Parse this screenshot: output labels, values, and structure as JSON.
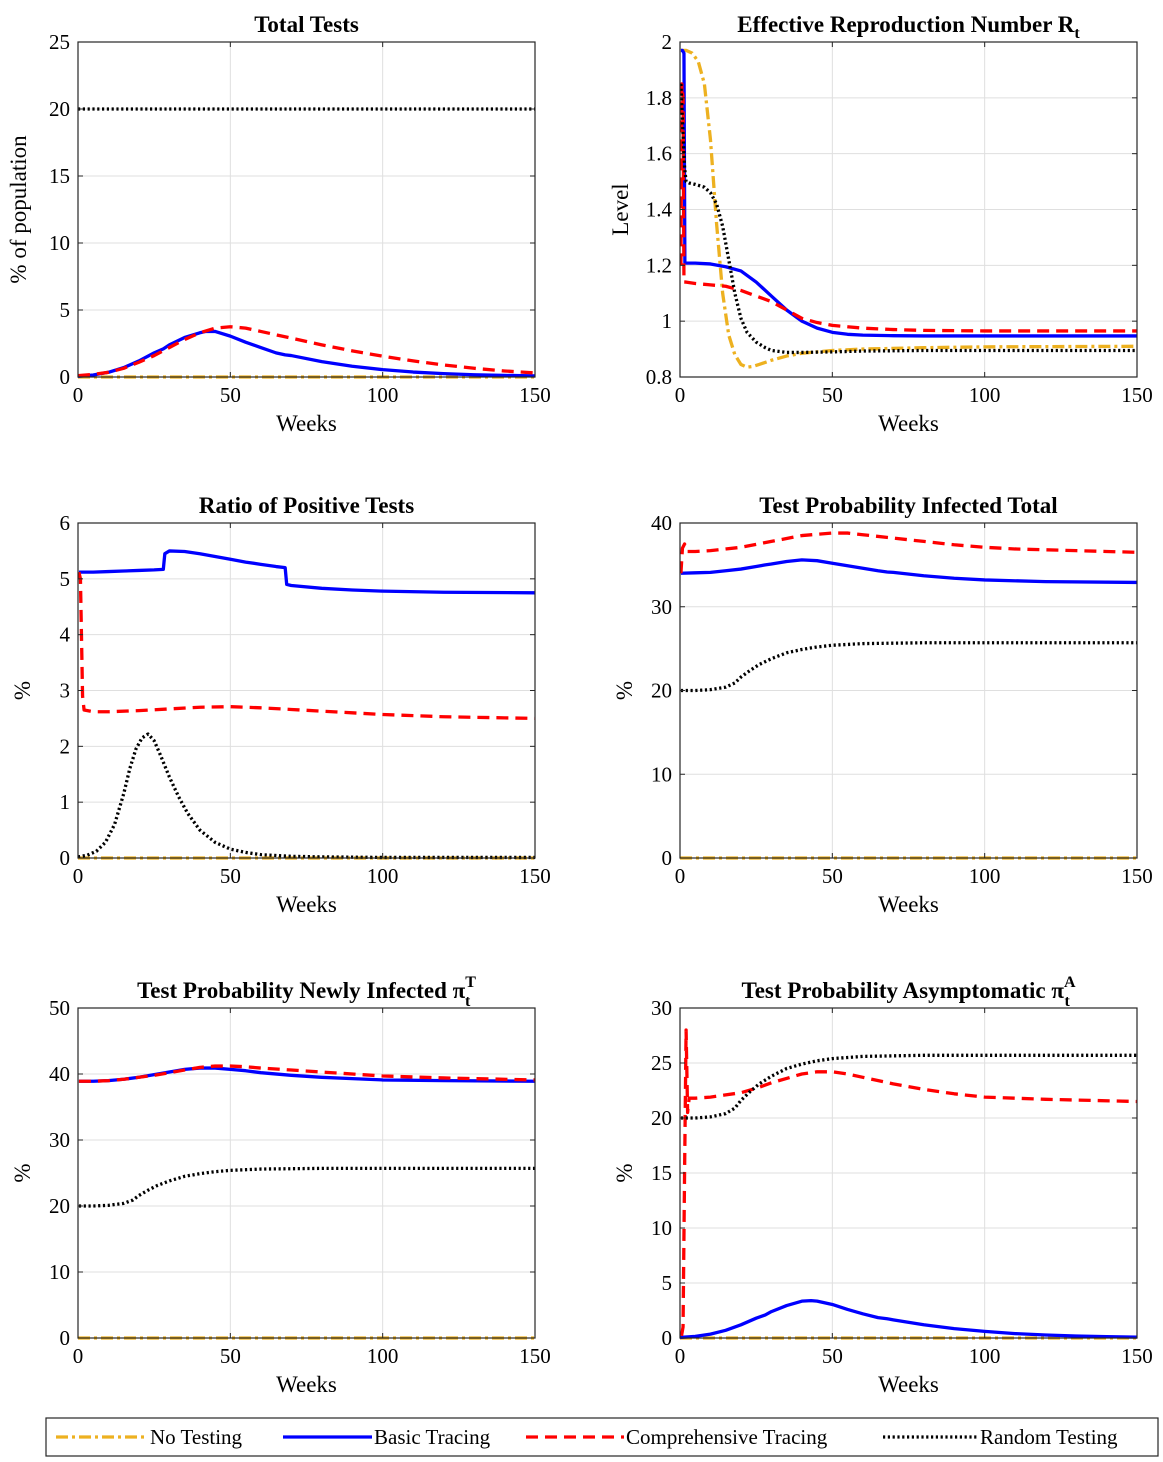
{
  "legend": [
    {
      "key": "no",
      "label": "No Testing"
    },
    {
      "key": "basic",
      "label": "Basic Tracing"
    },
    {
      "key": "comp",
      "label": "Comprehensive Tracing"
    },
    {
      "key": "random",
      "label": "Random Testing"
    }
  ],
  "styles": {
    "no": {
      "color": "#EDB120",
      "dash": "12 4 3 4"
    },
    "basic": {
      "color": "#0000FF",
      "dash": ""
    },
    "comp": {
      "color": "#FF0000",
      "dash": "12 7"
    },
    "random": {
      "color": "#000000",
      "dash": "2.2 2.6"
    }
  },
  "chart_data": [
    {
      "type": "line",
      "title": "Total Tests",
      "xlabel": "Weeks",
      "ylabel": "% of population",
      "xlim": [
        0,
        150
      ],
      "ylim": [
        0,
        25
      ],
      "xticks": [
        0,
        50,
        100,
        150
      ],
      "yticks": [
        0,
        5,
        10,
        15,
        20,
        25
      ],
      "grid": true,
      "series": [
        {
          "key": "no",
          "x": [
            0,
            150
          ],
          "y": [
            0,
            0
          ]
        },
        {
          "key": "basic",
          "x": [
            0,
            5,
            10,
            15,
            20,
            25,
            28,
            30,
            35,
            40,
            42,
            45,
            50,
            55,
            60,
            65,
            68,
            70,
            80,
            90,
            100,
            110,
            120,
            130,
            140,
            150
          ],
          "y": [
            0.05,
            0.15,
            0.35,
            0.7,
            1.2,
            1.8,
            2.1,
            2.4,
            2.95,
            3.3,
            3.4,
            3.4,
            3.05,
            2.6,
            2.2,
            1.8,
            1.65,
            1.6,
            1.15,
            0.8,
            0.55,
            0.37,
            0.25,
            0.17,
            0.12,
            0.08
          ]
        },
        {
          "key": "comp",
          "x": [
            0,
            5,
            10,
            15,
            20,
            25,
            30,
            35,
            40,
            45,
            50,
            55,
            60,
            70,
            80,
            90,
            100,
            110,
            120,
            130,
            140,
            150
          ],
          "y": [
            0.1,
            0.2,
            0.35,
            0.65,
            1.1,
            1.6,
            2.2,
            2.8,
            3.3,
            3.65,
            3.75,
            3.65,
            3.4,
            2.9,
            2.4,
            1.95,
            1.55,
            1.2,
            0.9,
            0.65,
            0.45,
            0.3
          ]
        },
        {
          "key": "random",
          "x": [
            0,
            150
          ],
          "y": [
            20,
            20
          ]
        }
      ]
    },
    {
      "type": "line",
      "title": "Effective Reproduction Number R",
      "title_sub": "t",
      "xlabel": "Weeks",
      "ylabel": "Level",
      "xlim": [
        0,
        150
      ],
      "ylim": [
        0.8,
        2
      ],
      "xticks": [
        0,
        50,
        100,
        150
      ],
      "yticks": [
        0.8,
        1,
        1.2,
        1.4,
        1.6,
        1.8,
        2
      ],
      "ytick_labels": [
        "0.8",
        "1",
        "1.2",
        "1.4",
        "1.6",
        "1.8",
        "2"
      ],
      "grid": true,
      "series": [
        {
          "key": "no",
          "x": [
            0.3,
            2,
            4,
            6,
            8,
            10,
            12,
            14,
            16,
            18,
            20,
            22,
            24,
            26,
            30,
            35,
            40,
            50,
            60,
            80,
            100,
            150
          ],
          "y": [
            1.97,
            1.97,
            1.96,
            1.93,
            1.85,
            1.65,
            1.35,
            1.1,
            0.95,
            0.88,
            0.845,
            0.835,
            0.838,
            0.845,
            0.86,
            0.875,
            0.885,
            0.895,
            0.9,
            0.905,
            0.908,
            0.91
          ]
        },
        {
          "key": "basic",
          "x": [
            0.3,
            0.8,
            1.3,
            1.6,
            2,
            5,
            10,
            15,
            20,
            25,
            30,
            35,
            40,
            45,
            50,
            55,
            60,
            70,
            80,
            100,
            150
          ],
          "y": [
            1.97,
            1.97,
            1.96,
            1.21,
            1.208,
            1.208,
            1.205,
            1.195,
            1.18,
            1.14,
            1.09,
            1.04,
            1.0,
            0.975,
            0.96,
            0.953,
            0.95,
            0.948,
            0.947,
            0.947,
            0.947
          ]
        },
        {
          "key": "comp",
          "x": [
            0.3,
            0.6,
            1.0,
            1.3,
            2,
            5,
            10,
            15,
            20,
            25,
            30,
            35,
            40,
            45,
            50,
            60,
            70,
            80,
            100,
            150
          ],
          "y": [
            1.2,
            1.85,
            1.8,
            1.14,
            1.14,
            1.135,
            1.13,
            1.125,
            1.11,
            1.09,
            1.07,
            1.04,
            1.01,
            0.995,
            0.985,
            0.975,
            0.97,
            0.967,
            0.965,
            0.965
          ]
        },
        {
          "key": "random",
          "x": [
            0.3,
            0.8,
            1.5,
            2,
            3,
            5,
            8,
            10,
            12,
            14,
            16,
            18,
            20,
            22,
            25,
            28,
            30,
            35,
            40,
            50,
            60,
            80,
            150
          ],
          "y": [
            1.85,
            1.72,
            1.55,
            1.5,
            1.495,
            1.49,
            1.48,
            1.46,
            1.42,
            1.34,
            1.22,
            1.1,
            1.01,
            0.96,
            0.925,
            0.905,
            0.895,
            0.888,
            0.888,
            0.89,
            0.893,
            0.895,
            0.895
          ]
        }
      ]
    },
    {
      "type": "line",
      "title": "Ratio of Positive Tests",
      "xlabel": "Weeks",
      "ylabel": "%",
      "xlim": [
        0,
        150
      ],
      "ylim": [
        0,
        6
      ],
      "xticks": [
        0,
        50,
        100,
        150
      ],
      "yticks": [
        0,
        1,
        2,
        3,
        4,
        5,
        6
      ],
      "grid": true,
      "series": [
        {
          "key": "no",
          "x": [
            0,
            150
          ],
          "y": [
            0,
            0
          ]
        },
        {
          "key": "basic",
          "x": [
            0.3,
            5,
            10,
            15,
            20,
            25,
            28,
            28.5,
            30,
            35,
            40,
            45,
            50,
            55,
            60,
            65,
            68,
            68.5,
            70,
            80,
            90,
            100,
            120,
            150
          ],
          "y": [
            5.12,
            5.12,
            5.13,
            5.14,
            5.15,
            5.16,
            5.17,
            5.45,
            5.5,
            5.49,
            5.45,
            5.4,
            5.35,
            5.3,
            5.26,
            5.22,
            5.2,
            4.9,
            4.88,
            4.83,
            4.8,
            4.78,
            4.76,
            4.75
          ]
        },
        {
          "key": "comp",
          "x": [
            0.3,
            0.8,
            1.5,
            2,
            5,
            10,
            20,
            30,
            40,
            50,
            60,
            70,
            80,
            90,
            100,
            110,
            120,
            130,
            140,
            150
          ],
          "y": [
            5.12,
            5.0,
            2.9,
            2.65,
            2.62,
            2.62,
            2.64,
            2.67,
            2.7,
            2.71,
            2.69,
            2.66,
            2.63,
            2.6,
            2.57,
            2.55,
            2.53,
            2.52,
            2.51,
            2.5
          ]
        },
        {
          "key": "random",
          "x": [
            0,
            3,
            6,
            9,
            12,
            15,
            17,
            19,
            21,
            23,
            25,
            27,
            30,
            33,
            36,
            40,
            45,
            50,
            55,
            60,
            70,
            80,
            100,
            150
          ],
          "y": [
            0.02,
            0.05,
            0.12,
            0.28,
            0.6,
            1.15,
            1.6,
            1.95,
            2.15,
            2.22,
            2.1,
            1.85,
            1.45,
            1.1,
            0.8,
            0.5,
            0.28,
            0.16,
            0.1,
            0.06,
            0.03,
            0.02,
            0.01,
            0.01
          ]
        }
      ]
    },
    {
      "type": "line",
      "title": "Test Probability Infected Total",
      "xlabel": "Weeks",
      "ylabel": "%",
      "xlim": [
        0,
        150
      ],
      "ylim": [
        0,
        40
      ],
      "xticks": [
        0,
        50,
        100,
        150
      ],
      "yticks": [
        0,
        10,
        20,
        30,
        40
      ],
      "grid": true,
      "series": [
        {
          "key": "no",
          "x": [
            0,
            150
          ],
          "y": [
            0,
            0
          ]
        },
        {
          "key": "basic",
          "x": [
            0.3,
            5,
            10,
            15,
            20,
            25,
            28,
            30,
            35,
            40,
            45,
            50,
            55,
            60,
            65,
            68,
            70,
            80,
            90,
            100,
            120,
            150
          ],
          "y": [
            34.0,
            34.05,
            34.1,
            34.3,
            34.5,
            34.8,
            35.0,
            35.1,
            35.4,
            35.6,
            35.5,
            35.2,
            34.9,
            34.6,
            34.3,
            34.15,
            34.1,
            33.7,
            33.4,
            33.2,
            33.0,
            32.9
          ]
        },
        {
          "key": "comp",
          "x": [
            0.3,
            0.8,
            1.5,
            2.5,
            5,
            10,
            20,
            30,
            40,
            50,
            55,
            60,
            70,
            80,
            90,
            100,
            110,
            120,
            130,
            140,
            150
          ],
          "y": [
            34.0,
            37.0,
            37.5,
            36.6,
            36.6,
            36.7,
            37.1,
            37.8,
            38.5,
            38.8,
            38.8,
            38.6,
            38.2,
            37.8,
            37.4,
            37.1,
            36.9,
            36.8,
            36.7,
            36.6,
            36.5
          ]
        },
        {
          "key": "random",
          "x": [
            0.3,
            5,
            10,
            15,
            18,
            20,
            23,
            26,
            30,
            35,
            40,
            45,
            50,
            55,
            60,
            70,
            80,
            100,
            150
          ],
          "y": [
            20.0,
            20.0,
            20.1,
            20.4,
            20.9,
            21.6,
            22.4,
            23.1,
            23.8,
            24.5,
            24.9,
            25.2,
            25.4,
            25.5,
            25.6,
            25.65,
            25.7,
            25.7,
            25.7
          ]
        }
      ]
    },
    {
      "type": "line",
      "title": "Test Probability Newly Infected π",
      "title_sub": "t",
      "title_sup": "T",
      "xlabel": "Weeks",
      "ylabel": "%",
      "xlim": [
        0,
        150
      ],
      "ylim": [
        0,
        50
      ],
      "xticks": [
        0,
        50,
        100,
        150
      ],
      "yticks": [
        0,
        10,
        20,
        30,
        40,
        50
      ],
      "grid": true,
      "series": [
        {
          "key": "no",
          "x": [
            0,
            150
          ],
          "y": [
            0,
            0
          ]
        },
        {
          "key": "basic",
          "x": [
            0.3,
            5,
            10,
            15,
            20,
            25,
            30,
            35,
            40,
            45,
            50,
            55,
            60,
            70,
            80,
            90,
            100,
            120,
            150
          ],
          "y": [
            38.9,
            38.9,
            39.0,
            39.2,
            39.5,
            39.9,
            40.3,
            40.7,
            40.9,
            40.9,
            40.7,
            40.5,
            40.2,
            39.8,
            39.5,
            39.3,
            39.1,
            39.0,
            38.9
          ]
        },
        {
          "key": "comp",
          "x": [
            0.3,
            5,
            10,
            15,
            20,
            25,
            30,
            35,
            40,
            45,
            50,
            55,
            60,
            70,
            80,
            90,
            100,
            120,
            150
          ],
          "y": [
            38.9,
            38.9,
            39.0,
            39.2,
            39.5,
            39.8,
            40.2,
            40.6,
            41.0,
            41.2,
            41.2,
            41.1,
            40.9,
            40.6,
            40.3,
            40.0,
            39.7,
            39.4,
            39.1
          ]
        },
        {
          "key": "random",
          "x": [
            0.3,
            5,
            10,
            15,
            18,
            20,
            23,
            26,
            30,
            35,
            40,
            45,
            50,
            55,
            60,
            70,
            80,
            100,
            150
          ],
          "y": [
            20.0,
            20.0,
            20.1,
            20.4,
            20.9,
            21.6,
            22.4,
            23.1,
            23.8,
            24.5,
            24.9,
            25.2,
            25.4,
            25.5,
            25.6,
            25.65,
            25.7,
            25.7,
            25.7
          ]
        }
      ]
    },
    {
      "type": "line",
      "title": "Test Probability Asymptomatic π",
      "title_sub": "t",
      "title_sup": "A",
      "xlabel": "Weeks",
      "ylabel": "%",
      "xlim": [
        0,
        150
      ],
      "ylim": [
        0,
        30
      ],
      "xticks": [
        0,
        50,
        100,
        150
      ],
      "yticks": [
        0,
        5,
        10,
        15,
        20,
        25,
        30
      ],
      "grid": true,
      "series": [
        {
          "key": "no",
          "x": [
            0,
            150
          ],
          "y": [
            0,
            0
          ]
        },
        {
          "key": "basic",
          "x": [
            0,
            5,
            10,
            15,
            20,
            25,
            28,
            30,
            35,
            40,
            43,
            45,
            50,
            55,
            60,
            65,
            68,
            70,
            80,
            90,
            100,
            110,
            120,
            130,
            140,
            150
          ],
          "y": [
            0.05,
            0.15,
            0.35,
            0.7,
            1.2,
            1.8,
            2.1,
            2.4,
            2.95,
            3.35,
            3.4,
            3.35,
            3.05,
            2.6,
            2.2,
            1.85,
            1.75,
            1.65,
            1.2,
            0.85,
            0.6,
            0.4,
            0.27,
            0.18,
            0.12,
            0.08
          ]
        },
        {
          "key": "comp",
          "x": [
            0.5,
            1.0,
            1.5,
            2.0,
            2.5,
            3,
            5,
            10,
            15,
            20,
            25,
            30,
            35,
            40,
            45,
            50,
            55,
            60,
            70,
            80,
            90,
            100,
            120,
            150
          ],
          "y": [
            0.2,
            1.0,
            15.0,
            28.0,
            20.5,
            21.8,
            21.8,
            21.9,
            22.1,
            22.3,
            22.7,
            23.2,
            23.6,
            24.0,
            24.2,
            24.2,
            24.0,
            23.7,
            23.1,
            22.6,
            22.2,
            21.9,
            21.7,
            21.5
          ]
        },
        {
          "key": "random",
          "x": [
            0.3,
            5,
            10,
            15,
            18,
            20,
            23,
            26,
            30,
            35,
            40,
            45,
            50,
            55,
            60,
            70,
            80,
            100,
            150
          ],
          "y": [
            20.0,
            20.0,
            20.1,
            20.4,
            20.9,
            21.6,
            22.4,
            23.1,
            23.8,
            24.5,
            24.9,
            25.2,
            25.4,
            25.5,
            25.6,
            25.65,
            25.7,
            25.7,
            25.7
          ]
        }
      ]
    }
  ]
}
